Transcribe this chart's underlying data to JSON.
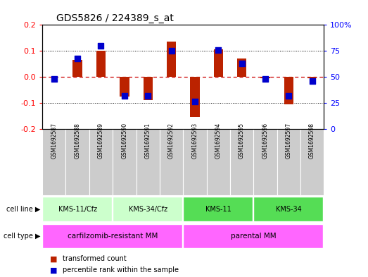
{
  "title": "GDS5826 / 224389_s_at",
  "samples": [
    "GSM1692587",
    "GSM1692588",
    "GSM1692589",
    "GSM1692590",
    "GSM1692591",
    "GSM1692592",
    "GSM1692593",
    "GSM1692594",
    "GSM1692595",
    "GSM1692596",
    "GSM1692597",
    "GSM1692598"
  ],
  "transformed_count": [
    0.0,
    0.065,
    0.1,
    -0.075,
    -0.09,
    0.135,
    -0.155,
    0.105,
    0.07,
    -0.005,
    -0.105,
    -0.005
  ],
  "percentile_rank": [
    48,
    68,
    80,
    32,
    32,
    75,
    26,
    76,
    63,
    48,
    32,
    46
  ],
  "cell_line_groups": [
    {
      "label": "KMS-11/Cfz",
      "start": 0,
      "end": 3
    },
    {
      "label": "KMS-34/Cfz",
      "start": 3,
      "end": 6
    },
    {
      "label": "KMS-11",
      "start": 6,
      "end": 9
    },
    {
      "label": "KMS-34",
      "start": 9,
      "end": 12
    }
  ],
  "cell_type_groups": [
    {
      "label": "carfilzomib-resistant MM",
      "start": 0,
      "end": 6
    },
    {
      "label": "parental MM",
      "start": 6,
      "end": 12
    }
  ],
  "ylim": [
    -0.2,
    0.2
  ],
  "y2lim": [
    0,
    100
  ],
  "yticks": [
    -0.2,
    -0.1,
    0.0,
    0.1,
    0.2
  ],
  "y2ticks": [
    0,
    25,
    50,
    75,
    100
  ],
  "bar_color": "#bb2200",
  "dot_color": "#0000cc",
  "zero_line_color": "#cc0000",
  "cell_line_light_color": "#ccffcc",
  "cell_line_dark_color": "#55dd55",
  "cell_type_color": "#ff66ff",
  "sample_bg_color": "#cccccc",
  "bar_width": 0.4
}
